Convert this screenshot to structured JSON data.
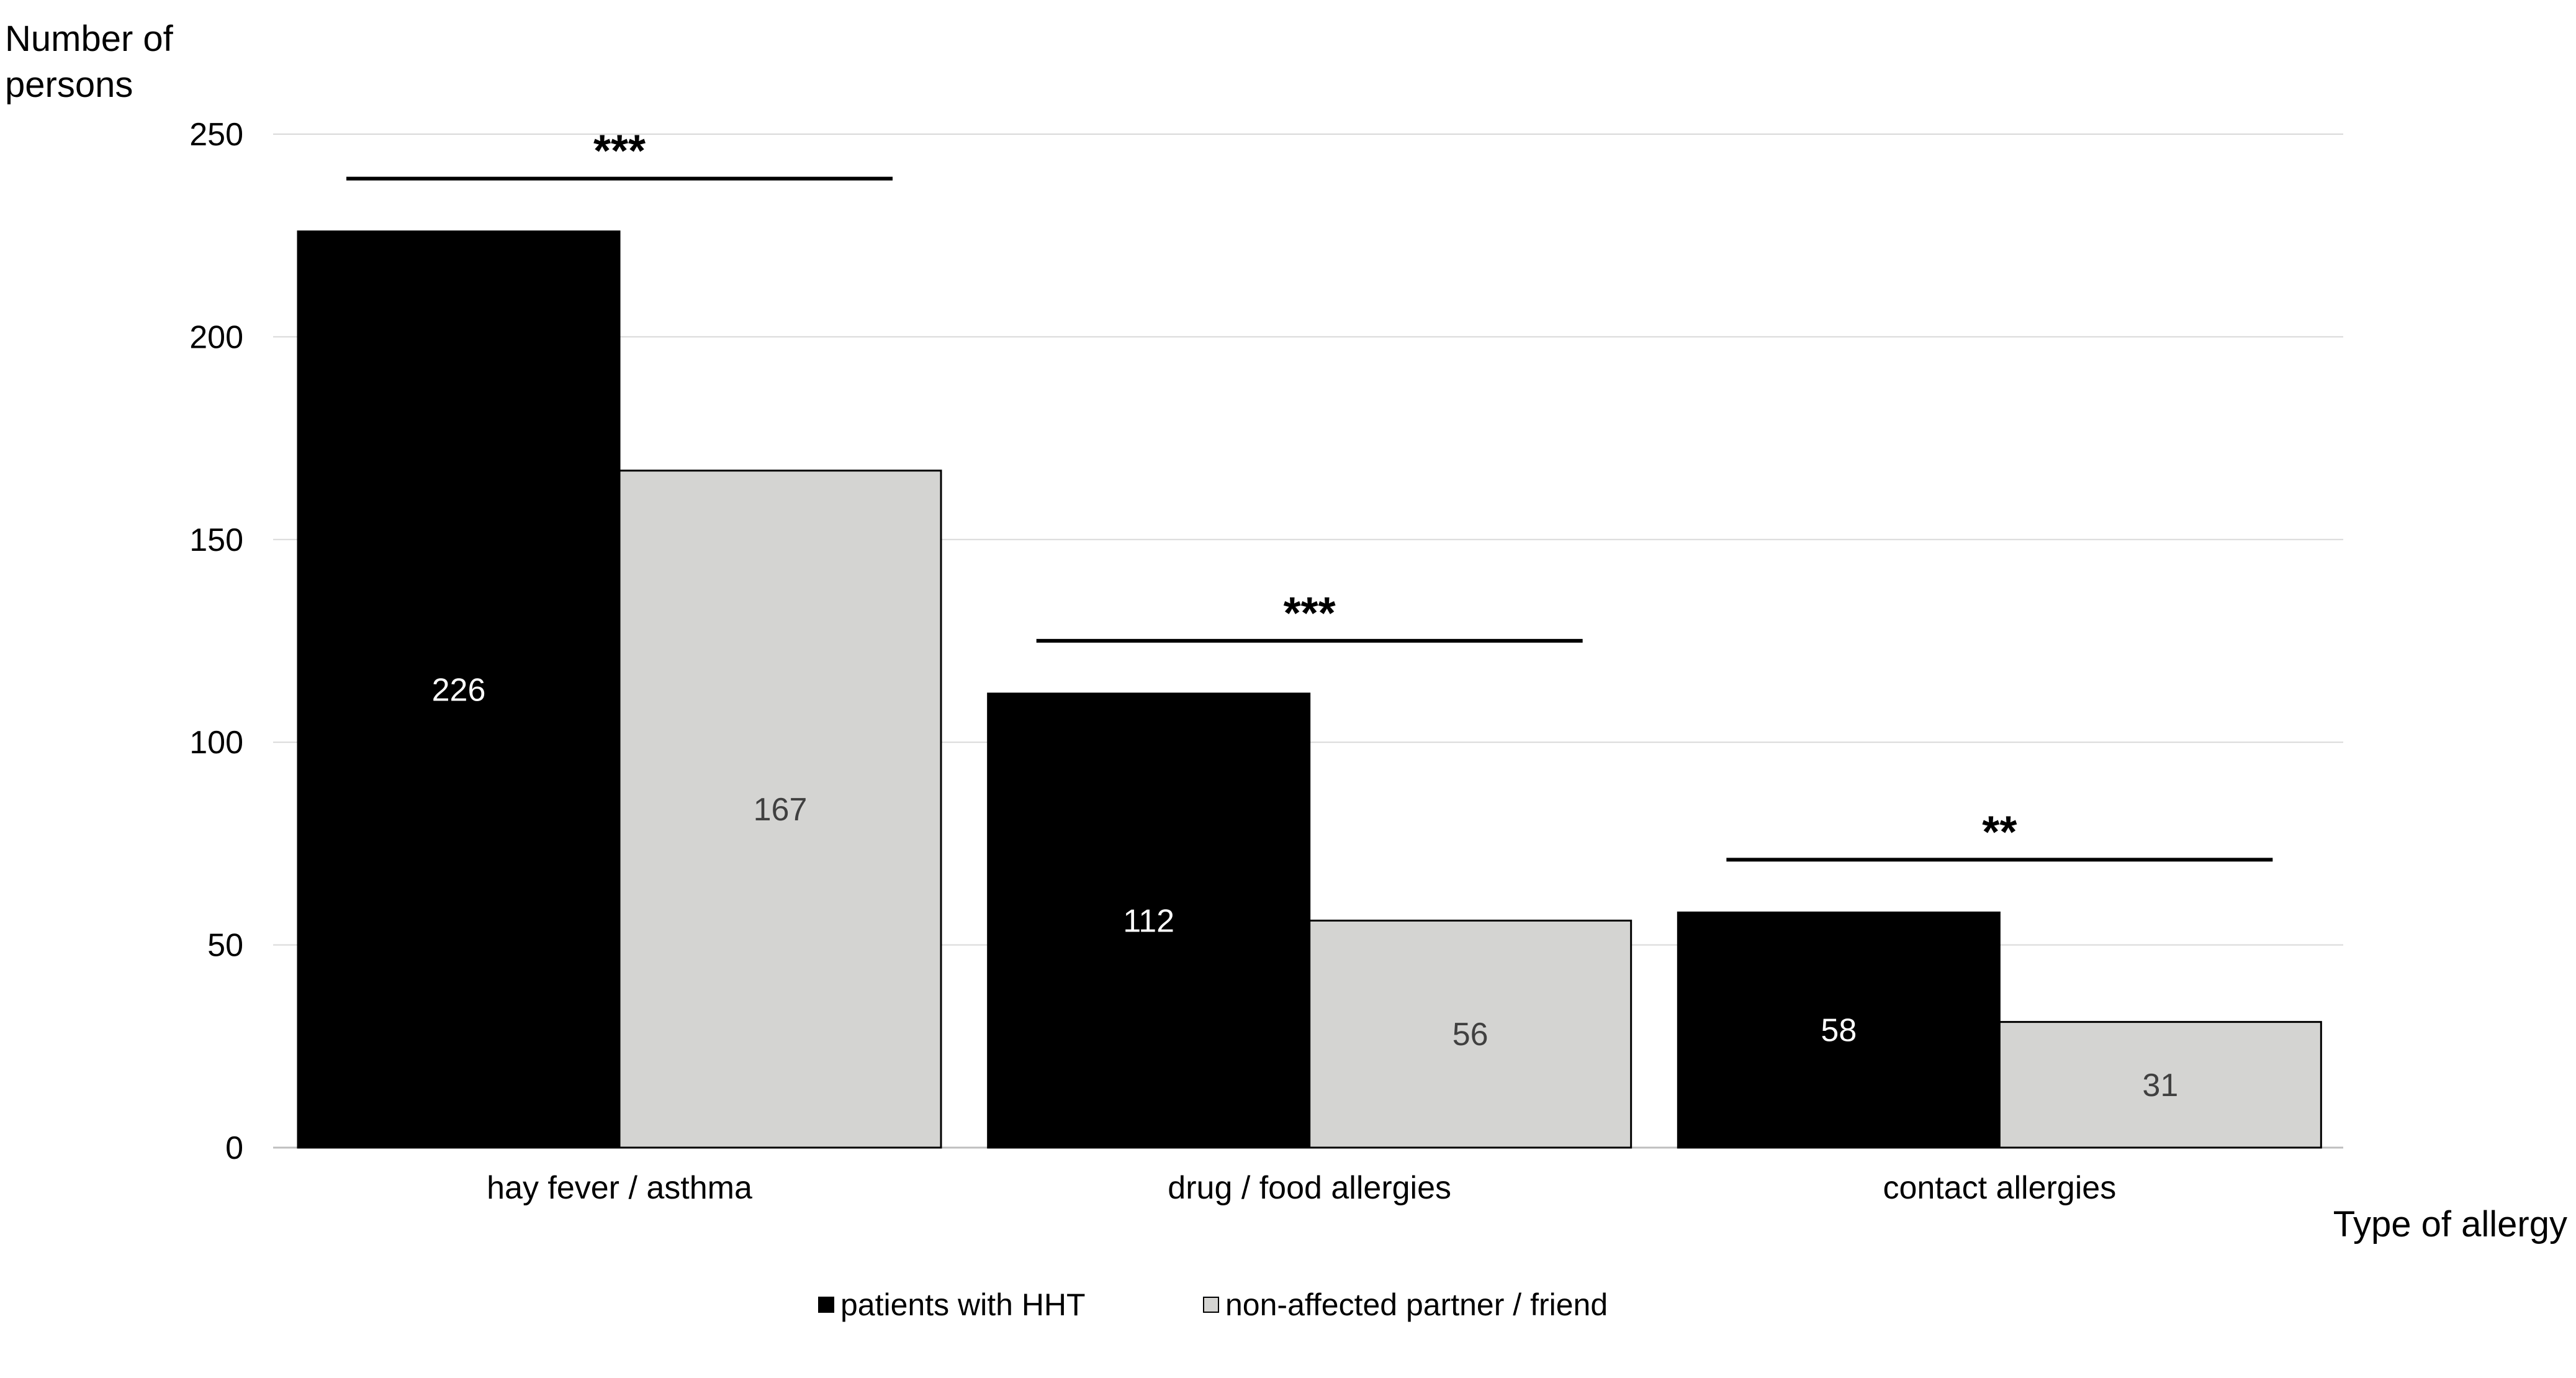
{
  "chart_data": {
    "type": "bar",
    "categories": [
      "hay fever / asthma",
      "drug / food allergies",
      "contact allergies"
    ],
    "series": [
      {
        "name": "patients with HHT",
        "values": [
          226,
          112,
          58
        ],
        "color": "#000000",
        "label_color": "#ffffff"
      },
      {
        "name": "non-affected partner / friend",
        "values": [
          167,
          56,
          31
        ],
        "color": "#d4d4d2",
        "label_color": "#404040"
      }
    ],
    "ylabel": [
      "Number of",
      "persons"
    ],
    "xlabel": "Type of allergy",
    "ylim": [
      0,
      250
    ],
    "yticks": [
      0,
      50,
      100,
      150,
      200,
      250
    ],
    "grid": true,
    "legend_position": "bottom",
    "significance": [
      "***",
      "***",
      "**"
    ]
  }
}
